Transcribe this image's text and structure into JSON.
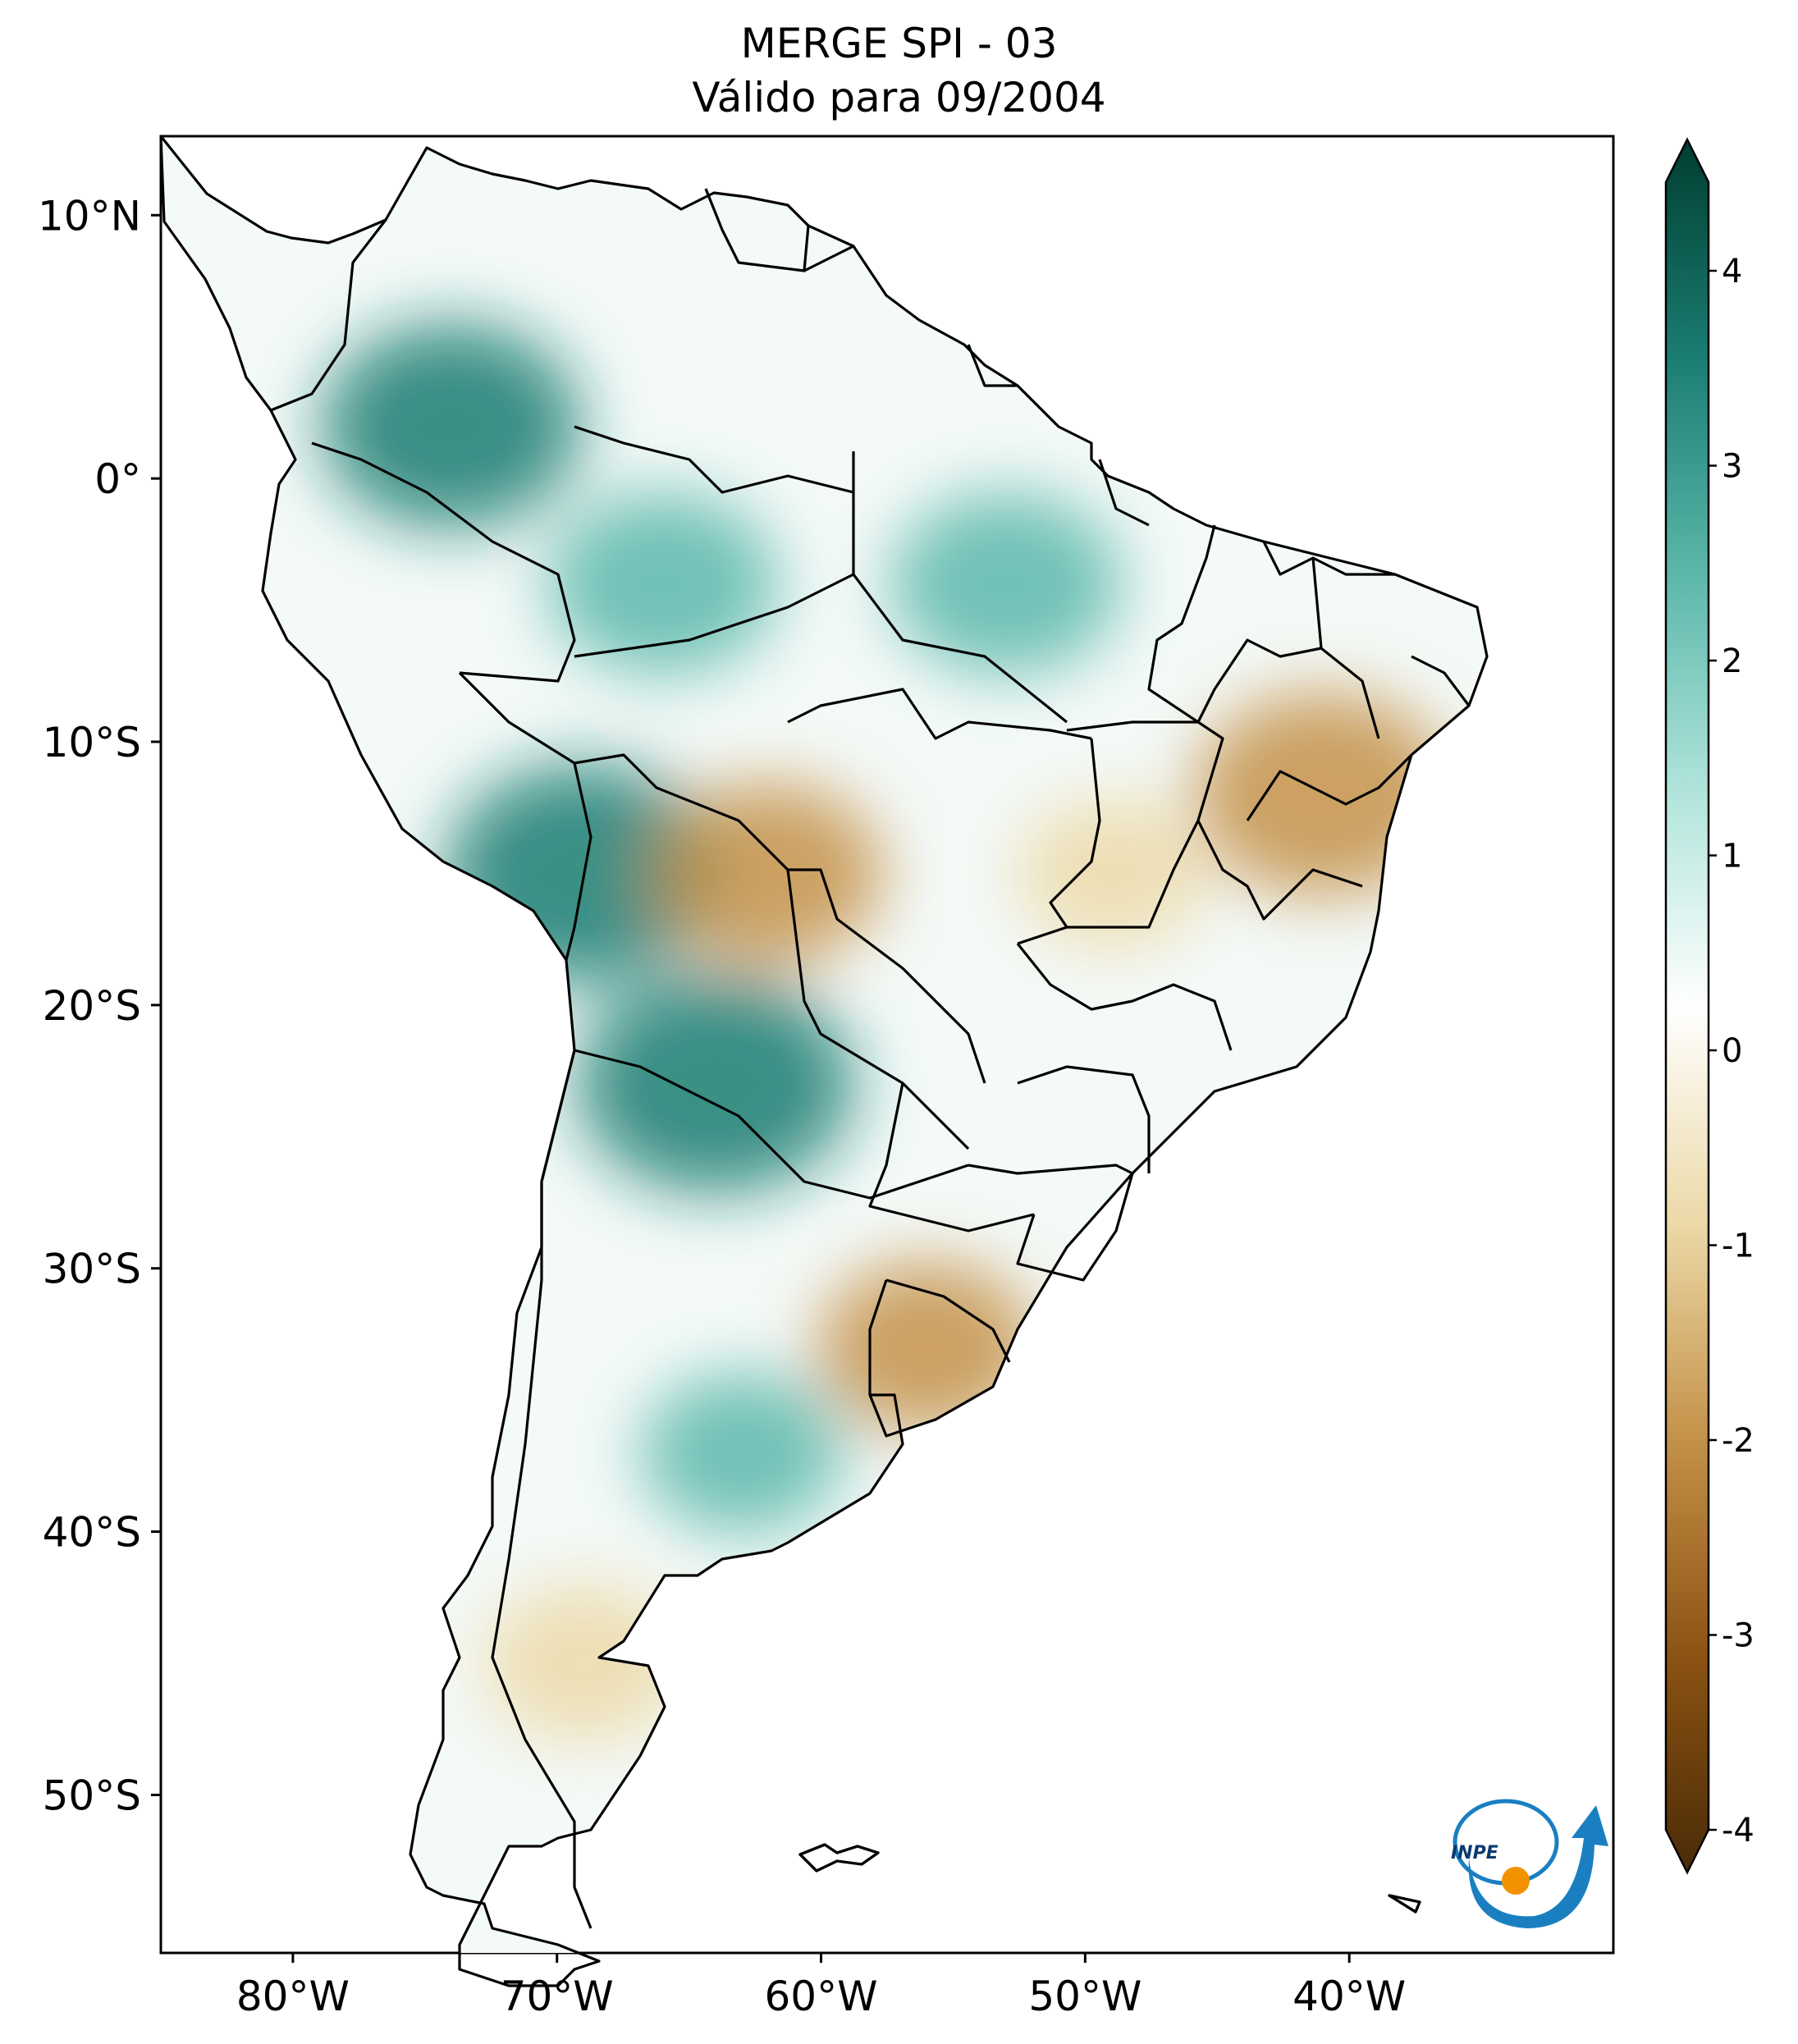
{
  "title": "MERGE   SPI - 03",
  "subtitle": "Válido para 09/2004",
  "logo_text": "INPE",
  "map": {
    "lon_range": [
      -85,
      -30
    ],
    "lat_range": [
      -56,
      13
    ]
  },
  "y_axis_ticks": [
    {
      "lat": 10,
      "label": "10°N"
    },
    {
      "lat": 0,
      "label": "0°"
    },
    {
      "lat": -10,
      "label": "10°S"
    },
    {
      "lat": -20,
      "label": "20°S"
    },
    {
      "lat": -30,
      "label": "30°S"
    },
    {
      "lat": -40,
      "label": "40°S"
    },
    {
      "lat": -50,
      "label": "50°S"
    }
  ],
  "x_axis_ticks": [
    {
      "lon": -80,
      "label": "80°W"
    },
    {
      "lon": -70,
      "label": "70°W"
    },
    {
      "lon": -60,
      "label": "60°W"
    },
    {
      "lon": -50,
      "label": "50°W"
    },
    {
      "lon": -40,
      "label": "40°W"
    }
  ],
  "colorbar": {
    "min": -4,
    "max": 4,
    "ticks": [
      {
        "value": 4,
        "label": "4"
      },
      {
        "value": 3,
        "label": "3"
      },
      {
        "value": 2,
        "label": "2"
      },
      {
        "value": 1,
        "label": "1"
      },
      {
        "value": 0,
        "label": "0"
      },
      {
        "value": -1,
        "label": "-1"
      },
      {
        "value": -2,
        "label": "-2"
      },
      {
        "value": -3,
        "label": "-3"
      },
      {
        "value": -4,
        "label": "-4"
      }
    ],
    "colors": {
      "v-4": "#4a2b07",
      "v-3": "#8c5313",
      "v-2": "#c49148",
      "v-1": "#ecd9a8",
      "v0": "#ffffff",
      "v1": "#b0e4db",
      "v2": "#5bb7aa",
      "v3": "#1b7d72",
      "v4": "#003d30"
    }
  },
  "anomaly_regions": [
    {
      "name": "colombia-wet",
      "lon": -74,
      "lat": 2,
      "value": 2.5
    },
    {
      "name": "amazon-wet",
      "lon": -66,
      "lat": -4,
      "value": 2.0
    },
    {
      "name": "para-wet",
      "lon": -53,
      "lat": -4,
      "value": 2.0
    },
    {
      "name": "peru-bolivia-wet",
      "lon": -69,
      "lat": -15,
      "value": 2.8
    },
    {
      "name": "argentina-north-wet",
      "lon": -64,
      "lat": -23,
      "value": 2.8
    },
    {
      "name": "patagonia-wet",
      "lon": -63,
      "lat": -37,
      "value": 1.5
    },
    {
      "name": "bahia-dry",
      "lon": -41,
      "lat": -12,
      "value": -2.5
    },
    {
      "name": "mato-grosso-dry",
      "lon": -62,
      "lat": -15,
      "value": -2.0
    },
    {
      "name": "uruguay-dry",
      "lon": -56,
      "lat": -33,
      "value": -1.8
    },
    {
      "name": "goias-dry",
      "lon": -49,
      "lat": -15,
      "value": -1.3
    },
    {
      "name": "santa-cruz-dry",
      "lon": -69,
      "lat": -45,
      "value": -1.5
    }
  ]
}
